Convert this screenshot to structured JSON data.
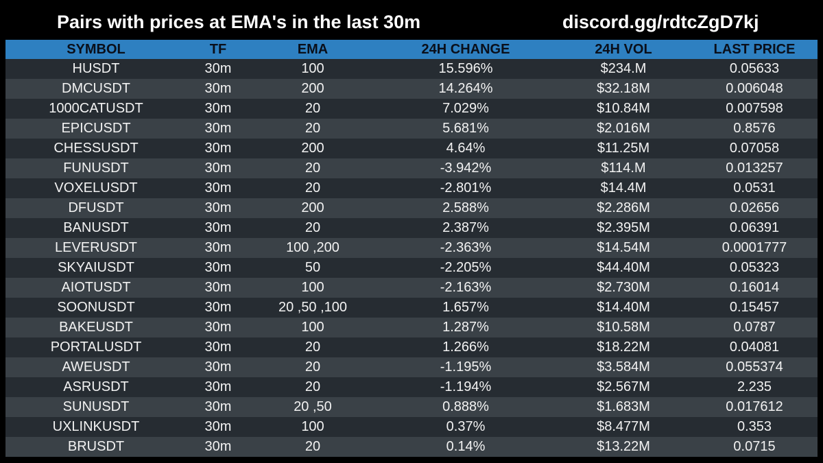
{
  "header": {
    "title": "Pairs with prices at EMA's in the last 30m",
    "link": "discord.gg/rdtcZgD7kj"
  },
  "colors": {
    "header_bg": "#000000",
    "table_header_bg": "#2e80c1",
    "row_dark": "#262c32",
    "row_light": "#3a4147",
    "text": "#f2f2f2"
  },
  "table": {
    "columns": [
      "SYMBOL",
      "TF",
      "EMA",
      "24H CHANGE",
      "24H VOL",
      "LAST PRICE"
    ],
    "rows": [
      [
        "HUSDT",
        "30m",
        "100",
        "15.596%",
        "$234.M",
        "0.05633"
      ],
      [
        "DMCUSDT",
        "30m",
        "200",
        "14.264%",
        "$32.18M",
        "0.006048"
      ],
      [
        "1000CATUSDT",
        "30m",
        "20",
        "7.029%",
        "$10.84M",
        "0.007598"
      ],
      [
        "EPICUSDT",
        "30m",
        "20",
        "5.681%",
        "$2.016M",
        "0.8576"
      ],
      [
        "CHESSUSDT",
        "30m",
        "200",
        "4.64%",
        "$11.25M",
        "0.07058"
      ],
      [
        "FUNUSDT",
        "30m",
        "20",
        "-3.942%",
        "$114.M",
        "0.013257"
      ],
      [
        "VOXELUSDT",
        "30m",
        "20",
        "-2.801%",
        "$14.4M",
        "0.0531"
      ],
      [
        "DFUSDT",
        "30m",
        "200",
        "2.588%",
        "$2.286M",
        "0.02656"
      ],
      [
        "BANUSDT",
        "30m",
        "20",
        "2.387%",
        "$2.395M",
        "0.06391"
      ],
      [
        "LEVERUSDT",
        "30m",
        "100 ,200",
        "-2.363%",
        "$14.54M",
        "0.0001777"
      ],
      [
        "SKYAIUSDT",
        "30m",
        "50",
        "-2.205%",
        "$44.40M",
        "0.05323"
      ],
      [
        "AIOTUSDT",
        "30m",
        "100",
        "-2.163%",
        "$2.730M",
        "0.16014"
      ],
      [
        "SOONUSDT",
        "30m",
        "20 ,50 ,100",
        "1.657%",
        "$14.40M",
        "0.15457"
      ],
      [
        "BAKEUSDT",
        "30m",
        "100",
        "1.287%",
        "$10.58M",
        "0.0787"
      ],
      [
        "PORTALUSDT",
        "30m",
        "20",
        "1.266%",
        "$18.22M",
        "0.04081"
      ],
      [
        "AWEUSDT",
        "30m",
        "20",
        "-1.195%",
        "$3.584M",
        "0.055374"
      ],
      [
        "ASRUSDT",
        "30m",
        "20",
        "-1.194%",
        "$2.567M",
        "2.235"
      ],
      [
        "SUNUSDT",
        "30m",
        "20 ,50",
        "0.888%",
        "$1.683M",
        "0.017612"
      ],
      [
        "UXLINKUSDT",
        "30m",
        "100",
        "0.37%",
        "$8.477M",
        "0.353"
      ],
      [
        "BRUSDT",
        "30m",
        "20",
        "0.14%",
        "$13.22M",
        "0.0715"
      ]
    ]
  }
}
